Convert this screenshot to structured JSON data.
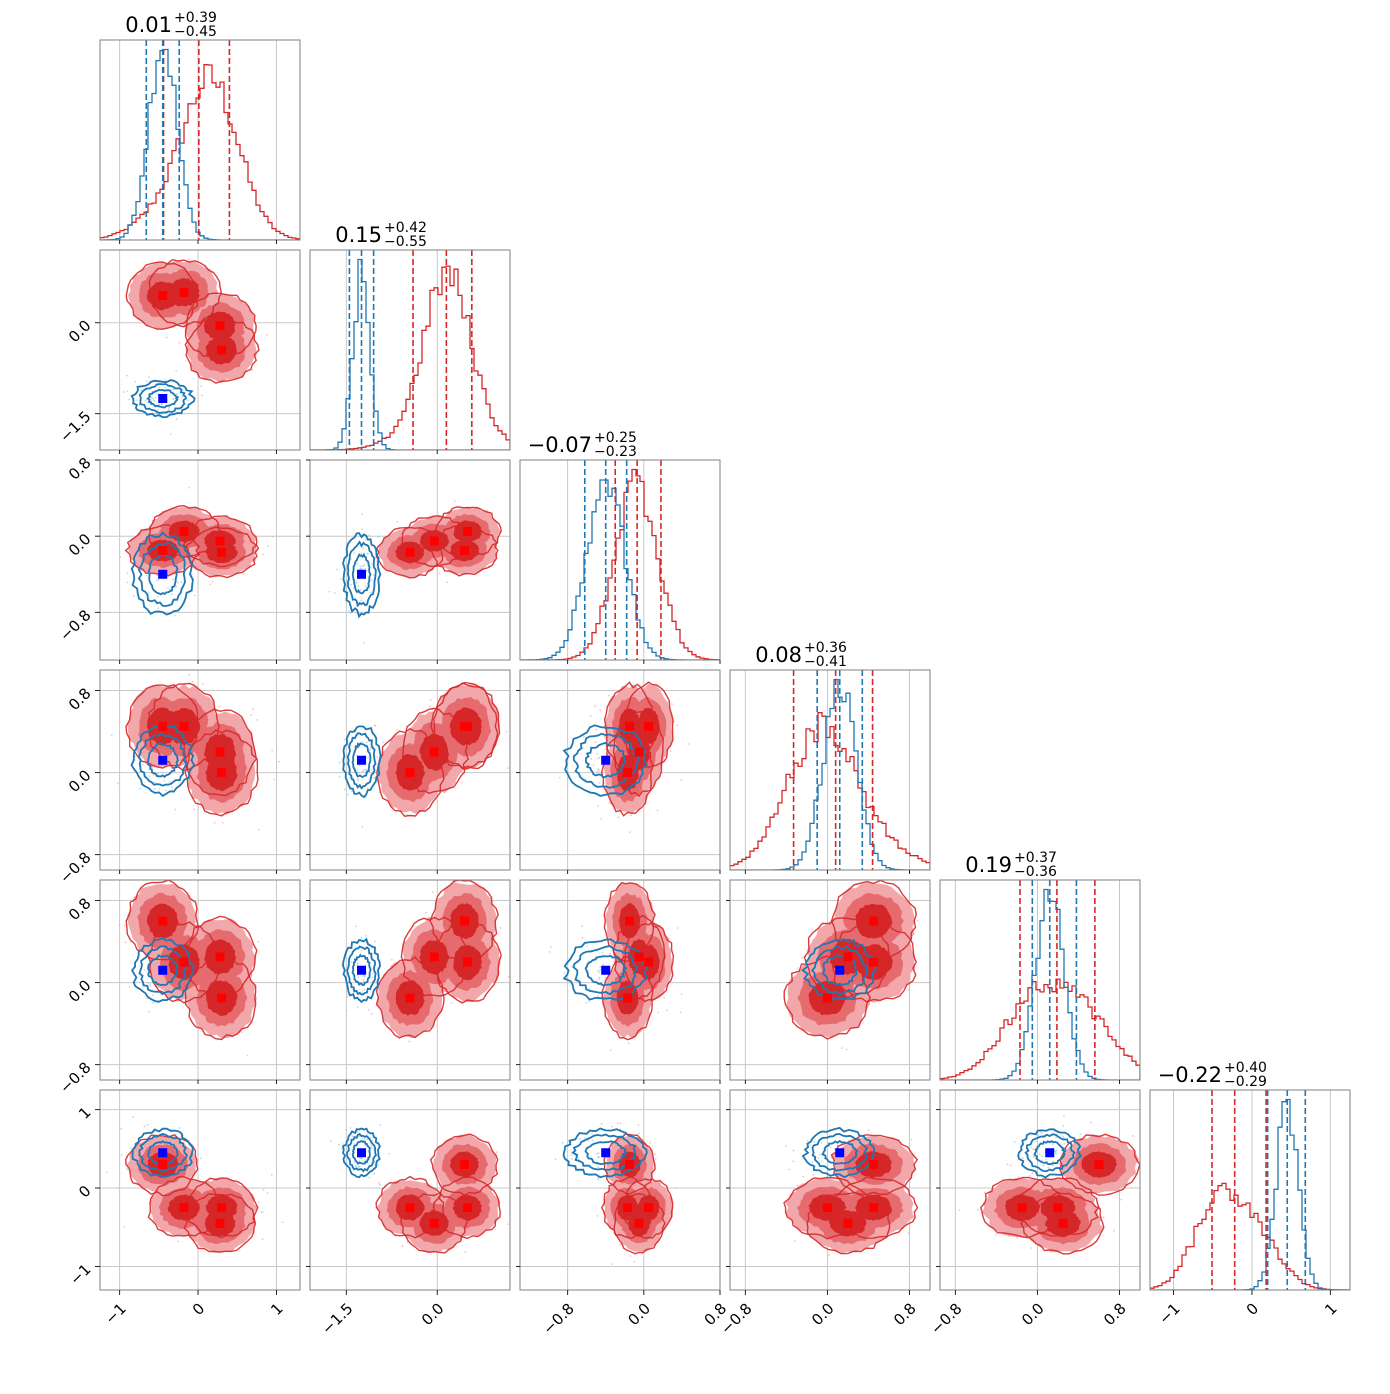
{
  "chart_data": {
    "type": "corner",
    "n_params": 6,
    "colors": {
      "series_a": "#d62728",
      "series_b": "#1f77b4",
      "truth_a": "#ff0000",
      "truth_b": "#0000ff"
    },
    "titles": [
      {
        "median": "0.01",
        "plus": "+0.39",
        "minus": "−0.45"
      },
      {
        "median": "0.15",
        "plus": "+0.42",
        "minus": "−0.55"
      },
      {
        "median": "−0.07",
        "plus": "+0.25",
        "minus": "−0.23"
      },
      {
        "median": "0.08",
        "plus": "+0.36",
        "minus": "−0.41"
      },
      {
        "median": "0.19",
        "plus": "+0.37",
        "minus": "−0.36"
      },
      {
        "median": "−0.22",
        "plus": "+0.40",
        "minus": "−0.29"
      }
    ],
    "ranges": [
      [
        -1.25,
        1.3
      ],
      [
        -2.1,
        1.2
      ],
      [
        -1.3,
        0.8
      ],
      [
        -0.95,
        1.0
      ],
      [
        -0.95,
        1.0
      ],
      [
        -1.3,
        1.25
      ]
    ],
    "ticks": [
      {
        "values": [
          -1,
          0,
          1
        ],
        "labels": [
          "−1",
          "0",
          "1"
        ]
      },
      {
        "values": [
          -1.5,
          0.0
        ],
        "labels": [
          "−1.5",
          "0.0"
        ]
      },
      {
        "values": [
          -0.8,
          0.0,
          0.8
        ],
        "labels": [
          "−0.8",
          "0.0",
          "0.8"
        ]
      },
      {
        "values": [
          -0.8,
          0.0,
          0.8
        ],
        "labels": [
          "−0.8",
          "0.0",
          "0.8"
        ]
      },
      {
        "values": [
          -0.8,
          0.0,
          0.8
        ],
        "labels": [
          "−0.8",
          "0.0",
          "0.8"
        ]
      },
      {
        "values": [
          -1,
          0,
          1
        ],
        "labels": [
          "−1",
          "0",
          "1"
        ]
      }
    ],
    "left_ticks": [
      null,
      {
        "values": [
          0.0,
          -1.5
        ],
        "labels": [
          "0.0",
          "−1.5"
        ]
      },
      {
        "values": [
          0.8,
          0.0,
          -0.8
        ],
        "labels": [
          "0.8",
          "0.0",
          "−0.8"
        ]
      },
      {
        "values": [
          0.8,
          0.0,
          -0.8
        ],
        "labels": [
          "0.8",
          "0.0",
          "−0.8"
        ]
      },
      {
        "values": [
          0.8,
          0.0,
          -0.8
        ],
        "labels": [
          "0.8",
          "0.0",
          "−0.8"
        ]
      },
      {
        "values": [
          1,
          0,
          -1
        ],
        "labels": [
          "1",
          "0",
          "−1"
        ]
      }
    ],
    "series_a": {
      "modes": [
        [
          [
            -0.45,
            0.45,
            -0.15,
            0.45,
            0.6
          ],
          [
            -0.18,
            0.5,
            0.05,
            0.45,
            0.2
          ],
          [
            0.28,
            -0.05,
            -0.05,
            0.45,
            0.2
          ],
          [
            0.3,
            -0.45,
            -0.17,
            0.4,
            -0.3
          ]
        ],
        [
          [
            -0.45,
            -0.4,
            -0.15,
            0.2,
            0.3
          ],
          [
            -0.18,
            -0.25,
            0.05,
            0.05,
            -0.45
          ],
          [
            0.28,
            -0.85,
            -0.05,
            0.15,
            -0.25
          ],
          [
            0.3,
            -0.45,
            -0.17,
            0.45,
            -0.25
          ]
        ],
        [
          [
            -0.45,
            0.45,
            -0.15,
            0.45,
            0.6
          ],
          [
            -0.18,
            0.5,
            0.05,
            0.45,
            0.2
          ],
          [
            0.28,
            -0.05,
            -0.05,
            0.45,
            0.2
          ],
          [
            0.3,
            -0.45,
            -0.17,
            0.4,
            -0.3
          ]
        ]
      ],
      "means": [
        0.01,
        0.15,
        -0.07,
        0.08,
        0.19,
        -0.22
      ],
      "sds": [
        0.42,
        0.5,
        0.24,
        0.38,
        0.36,
        0.35
      ],
      "quantiles": [
        [
          -0.44,
          0.01,
          0.4
        ],
        [
          -0.4,
          0.15,
          0.57
        ],
        [
          -0.3,
          -0.07,
          0.18
        ],
        [
          -0.33,
          0.08,
          0.44
        ],
        [
          -0.17,
          0.19,
          0.56
        ],
        [
          -0.51,
          -0.22,
          0.18
        ]
      ],
      "truths": [
        [
          -0.45,
          0.45,
          -0.15,
          0.45,
          0.6,
          0.3
        ],
        [
          -0.18,
          0.5,
          0.05,
          0.45,
          0.2,
          -0.25
        ],
        [
          0.28,
          -0.05,
          -0.05,
          0.2,
          0.25,
          -0.45
        ],
        [
          0.3,
          -0.45,
          -0.17,
          0.0,
          -0.15,
          -0.25
        ]
      ]
    },
    "series_b": {
      "means": [
        -0.45,
        -1.25,
        -0.4,
        0.12,
        0.12,
        0.45
      ],
      "sds": [
        0.18,
        0.14,
        0.2,
        0.16,
        0.14,
        0.14
      ],
      "quantiles": [
        [
          -0.66,
          -0.45,
          -0.24
        ],
        [
          -1.45,
          -1.25,
          -1.05
        ],
        [
          -0.62,
          -0.4,
          -0.18
        ],
        [
          -0.1,
          0.12,
          0.34
        ],
        [
          -0.05,
          0.12,
          0.38
        ],
        [
          0.2,
          0.45,
          0.68
        ]
      ],
      "truth": [
        -0.45,
        -1.25,
        -0.4,
        0.12,
        0.12,
        0.45
      ]
    }
  }
}
